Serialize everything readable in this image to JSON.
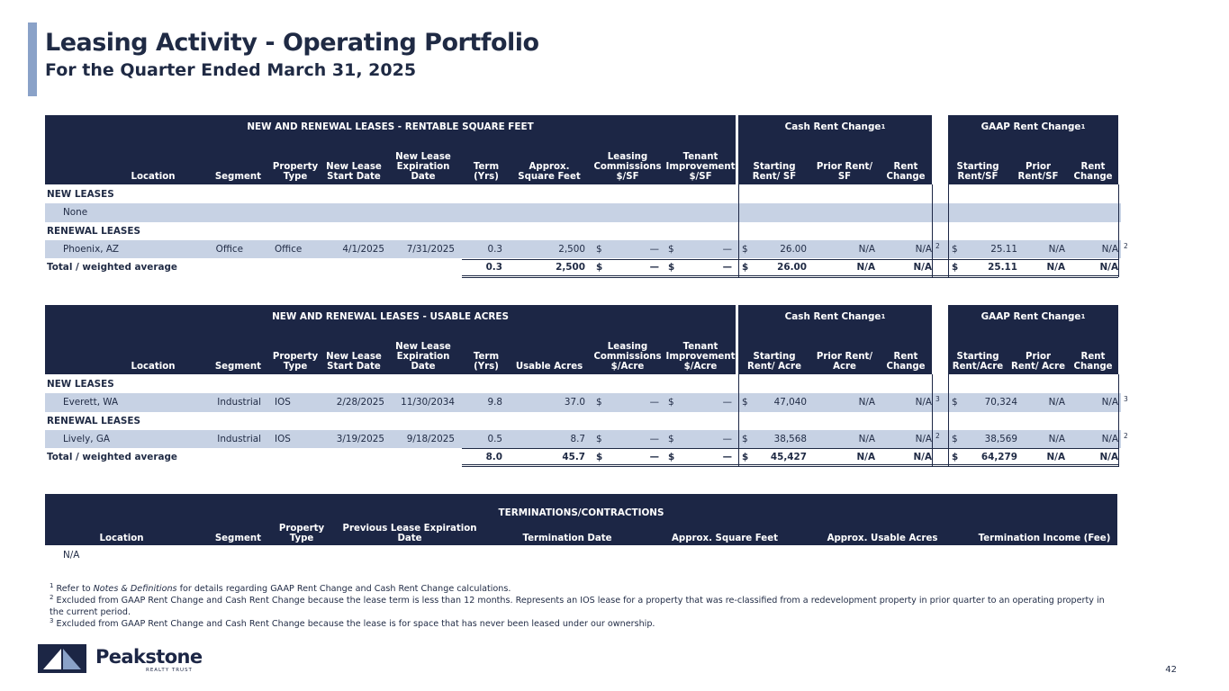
{
  "header": {
    "title": "Leasing Activity - Operating Portfolio",
    "subtitle": "For the Quarter Ended March 31, 2025"
  },
  "table1": {
    "group_title": "NEW AND RENEWAL LEASES - RENTABLE SQUARE FEET",
    "cash_group": "Cash Rent Change",
    "gaap_group": "GAAP Rent Change",
    "group_sup": "1",
    "columns": [
      "Location",
      "Segment",
      "Property Type",
      "New Lease Start Date",
      "New Lease Expiration Date",
      "Term (Yrs)",
      "Approx. Square Feet",
      "Leasing Commissions $/SF",
      "Tenant Improvement $/SF",
      "Starting Rent/ SF",
      "Prior Rent/ SF",
      "Rent Change",
      "Starting Rent/SF",
      "Prior Rent/SF",
      "Rent Change"
    ],
    "section_new": "NEW LEASES",
    "new_none": "None",
    "section_renewal": "RENEWAL LEASES",
    "renewal_row": {
      "location": "Phoenix, AZ",
      "segment": "Office",
      "type": "Office",
      "start": "4/1/2025",
      "exp": "7/31/2025",
      "term": "0.3",
      "sqft": "2,500",
      "lc_sym": "$",
      "lc": "—",
      "ti_sym": "$",
      "ti": "—",
      "cash_sym": "$",
      "cash_start": "26.00",
      "cash_prior": "N/A",
      "cash_change": "N/A",
      "cash_note": "2",
      "gaap_sym": "$",
      "gaap_start": "25.11",
      "gaap_prior": "N/A",
      "gaap_change": "N/A",
      "gaap_note": "2"
    },
    "total_row": {
      "label": "Total / weighted average",
      "term": "0.3",
      "sqft": "2,500",
      "lc_sym": "$",
      "lc": "—",
      "ti_sym": "$",
      "ti": "—",
      "cash_sym": "$",
      "cash_start": "26.00",
      "cash_prior": "N/A",
      "cash_change": "N/A",
      "gaap_sym": "$",
      "gaap_start": "25.11",
      "gaap_prior": "N/A",
      "gaap_change": "N/A"
    }
  },
  "table2": {
    "group_title": "NEW AND RENEWAL LEASES - USABLE ACRES",
    "cash_group": "Cash Rent Change",
    "gaap_group": "GAAP Rent Change",
    "group_sup": "1",
    "columns": [
      "Location",
      "Segment",
      "Property Type",
      "New Lease Start Date",
      "New Lease Expiration Date",
      "Term (Yrs)",
      "Usable Acres",
      "Leasing Commissions $/Acre",
      "Tenant Improvement $/Acre",
      "Starting Rent/ Acre",
      "Prior Rent/ Acre",
      "Rent Change",
      "Starting Rent/Acre",
      "Prior Rent/ Acre",
      "Rent Change"
    ],
    "section_new": "NEW LEASES",
    "new_row": {
      "location": "Everett, WA",
      "segment": "Industrial",
      "type": "IOS",
      "start": "2/28/2025",
      "exp": "11/30/2034",
      "term": "9.8",
      "acres": "37.0",
      "lc_sym": "$",
      "lc": "—",
      "ti_sym": "$",
      "ti": "—",
      "cash_sym": "$",
      "cash_start": "47,040",
      "cash_prior": "N/A",
      "cash_change": "N/A",
      "cash_note": "3",
      "gaap_sym": "$",
      "gaap_start": "70,324",
      "gaap_prior": "N/A",
      "gaap_change": "N/A",
      "gaap_note": "3"
    },
    "section_renewal": "RENEWAL LEASES",
    "renewal_row": {
      "location": "Lively, GA",
      "segment": "Industrial",
      "type": "IOS",
      "start": "3/19/2025",
      "exp": "9/18/2025",
      "term": "0.5",
      "acres": "8.7",
      "lc_sym": "$",
      "lc": "—",
      "ti_sym": "$",
      "ti": "—",
      "cash_sym": "$",
      "cash_start": "38,568",
      "cash_prior": "N/A",
      "cash_change": "N/A",
      "cash_note": "2",
      "gaap_sym": "$",
      "gaap_start": "38,569",
      "gaap_prior": "N/A",
      "gaap_change": "N/A",
      "gaap_note": "2"
    },
    "total_row": {
      "label": "Total / weighted average",
      "term": "8.0",
      "acres": "45.7",
      "lc_sym": "$",
      "lc": "—",
      "ti_sym": "$",
      "ti": "—",
      "cash_sym": "$",
      "cash_start": "45,427",
      "cash_prior": "N/A",
      "cash_change": "N/A",
      "gaap_sym": "$",
      "gaap_start": "64,279",
      "gaap_prior": "N/A",
      "gaap_change": "N/A"
    }
  },
  "table3": {
    "group_title": "TERMINATIONS/CONTRACTIONS",
    "columns": [
      "Location",
      "Segment",
      "Property Type",
      "Previous Lease Expiration Date",
      "Termination Date",
      "Approx. Square Feet",
      "Approx. Usable Acres",
      "Termination Income (Fee)"
    ],
    "empty_row": "N/A"
  },
  "footnotes": {
    "n1_mark": "1",
    "n1_pre": "Refer to ",
    "n1_italic": "Notes & Definitions",
    "n1_post": " for details regarding GAAP Rent Change and Cash Rent Change calculations.",
    "n2_mark": "2",
    "n2": "Excluded from GAAP Rent Change and Cash Rent Change because the lease term is less than 12 months. Represents an IOS lease for a property that was re-classified from a redevelopment property in prior quarter to an operating property in the current period.",
    "n3_mark": "3",
    "n3": "Excluded from GAAP Rent Change and Cash Rent Change because the lease is for space that has never been leased under our ownership."
  },
  "logo": {
    "name": "Peakstone",
    "sub": "REALTY TRUST"
  },
  "page_number": "42",
  "colors": {
    "navy": "#1c2645",
    "highlight": "#c7d2e4",
    "accent": "#8aa2c8"
  }
}
